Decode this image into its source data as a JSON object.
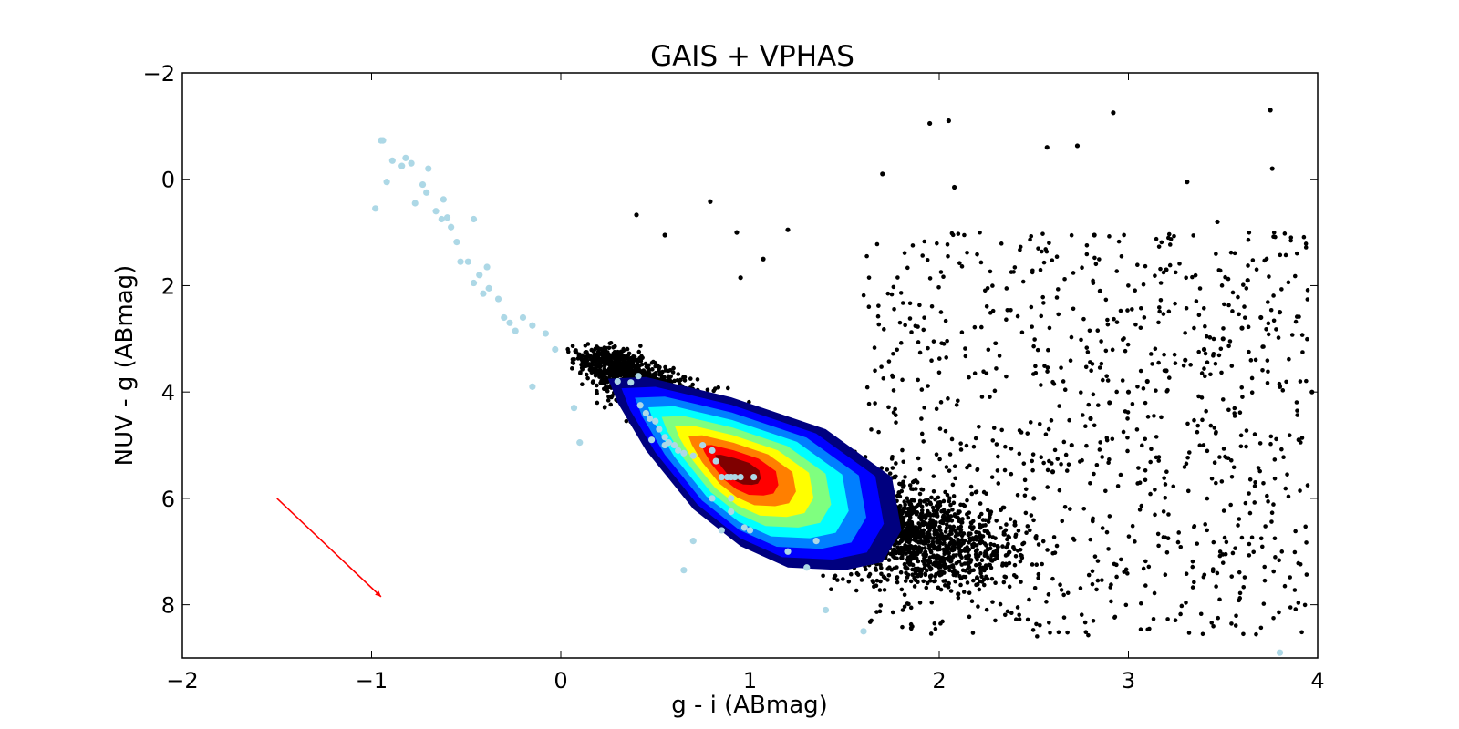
{
  "chart_data": {
    "type": "scatter",
    "title": "GAIS + VPHAS",
    "xlabel": "g - i (ABmag)",
    "ylabel": "NUV - g (ABmag)",
    "xlim": [
      -2,
      4
    ],
    "ylim": [
      9,
      -2
    ],
    "y_inverted": true,
    "grid": false,
    "xticks": [
      "−2",
      "−1",
      "0",
      "1",
      "2",
      "3",
      "4"
    ],
    "yticks": [
      "−2",
      "0",
      "2",
      "4",
      "6",
      "8"
    ],
    "xtick_values": [
      -2,
      -1,
      0,
      1,
      2,
      3,
      4
    ],
    "ytick_values": [
      -2,
      0,
      2,
      4,
      6,
      8
    ],
    "colors": {
      "field_points": "#000000",
      "reference_points": "#add8e6",
      "reddening_vector": "#ff0000",
      "density_levels": [
        "#00007f",
        "#0000ff",
        "#007fff",
        "#00ffff",
        "#7fff7f",
        "#ffff00",
        "#ff7f00",
        "#ff0000",
        "#7f0000"
      ]
    },
    "reddening_vector": {
      "start": [
        -1.5,
        6.0
      ],
      "end": [
        -0.95,
        7.85
      ]
    },
    "density_contour": {
      "description_levels": 9,
      "outer_ridge": [
        [
          0.25,
          3.75
        ],
        [
          0.45,
          3.72
        ],
        [
          0.9,
          4.1
        ],
        [
          1.4,
          4.7
        ],
        [
          1.75,
          5.6
        ],
        [
          1.8,
          6.6
        ],
        [
          1.7,
          7.2
        ],
        [
          1.5,
          7.35
        ],
        [
          1.2,
          7.3
        ],
        [
          0.95,
          6.9
        ],
        [
          0.7,
          6.2
        ],
        [
          0.45,
          5.1
        ],
        [
          0.3,
          4.2
        ]
      ],
      "peak": [
        0.92,
        5.45
      ]
    },
    "series": [
      {
        "name": "",
        "role": "field stars (black)",
        "x": [
          0.2,
          0.25,
          0.3,
          0.35,
          0.4,
          0.45,
          0.5,
          0.55,
          0.6,
          0.65,
          0.7,
          0.75,
          0.8,
          0.85,
          0.9,
          0.95,
          1.0,
          1.05,
          1.1,
          1.15,
          1.2,
          1.25,
          1.3,
          1.35,
          1.4,
          1.45,
          1.5,
          1.55,
          1.6,
          1.65,
          1.7,
          1.75,
          1.8,
          1.85,
          1.9,
          1.95,
          2.0,
          2.05,
          2.1,
          2.2,
          2.3,
          2.4,
          2.5,
          2.6,
          2.7,
          2.8,
          2.9,
          3.0,
          3.1,
          3.2,
          3.3,
          3.4,
          3.5,
          3.6,
          3.7,
          3.8,
          3.9,
          0.4,
          0.55,
          0.79,
          0.93,
          0.95,
          1.07,
          1.2,
          1.7,
          1.95,
          2.05,
          2.08,
          2.57,
          2.73,
          2.92,
          3.75,
          3.76,
          3.31,
          3.47,
          3.2,
          2.82,
          2.85,
          3.63,
          3.8,
          3.97
        ],
        "y": [
          3.3,
          3.4,
          3.5,
          3.5,
          3.6,
          3.7,
          3.8,
          3.9,
          4.0,
          4.1,
          4.2,
          4.3,
          4.4,
          4.5,
          4.6,
          4.7,
          4.8,
          4.9,
          5.0,
          5.1,
          5.2,
          5.3,
          5.4,
          5.5,
          5.6,
          5.7,
          5.8,
          5.9,
          6.0,
          6.2,
          6.4,
          6.6,
          6.8,
          6.9,
          7.0,
          7.2,
          7.4,
          7.6,
          7.8,
          7.5,
          7.0,
          6.5,
          6.0,
          5.5,
          5.0,
          4.5,
          4.2,
          4.0,
          3.8,
          3.6,
          3.4,
          3.2,
          3.0,
          2.8,
          2.6,
          3.9,
          4.9,
          0.67,
          1.05,
          0.42,
          1.0,
          1.85,
          1.5,
          0.95,
          -0.1,
          -1.05,
          -1.1,
          0.15,
          -0.6,
          -0.63,
          -1.25,
          -1.3,
          -0.2,
          0.05,
          0.8,
          1.7,
          1.05,
          2.1,
          1.9,
          2.5,
          4.0
        ]
      },
      {
        "name": "",
        "role": "reference sequence (light blue)",
        "x": [
          -0.98,
          -0.95,
          -0.92,
          -0.94,
          -0.89,
          -0.84,
          -0.82,
          -0.79,
          -0.77,
          -0.73,
          -0.71,
          -0.7,
          -0.66,
          -0.63,
          -0.62,
          -0.6,
          -0.58,
          -0.55,
          -0.53,
          -0.49,
          -0.46,
          -0.46,
          -0.43,
          -0.41,
          -0.39,
          -0.38,
          -0.33,
          -0.3,
          -0.27,
          -0.24,
          -0.2,
          -0.15,
          -0.15,
          -0.08,
          -0.03,
          0.07,
          0.1,
          0.3,
          0.37,
          0.41,
          0.42,
          0.45,
          0.47,
          0.5,
          0.52,
          0.55,
          0.57,
          0.6,
          0.62,
          0.65,
          0.7,
          0.75,
          0.8,
          0.82,
          0.85,
          0.88,
          0.9,
          0.92,
          0.95,
          1.02,
          0.8,
          0.9,
          0.97,
          1.35,
          1.3,
          0.65,
          0.7,
          0.48,
          0.55,
          0.85,
          0.9,
          1.0,
          1.2,
          1.4,
          1.6,
          3.8
        ],
        "y": [
          0.55,
          -0.73,
          0.05,
          -0.73,
          -0.35,
          -0.25,
          -0.4,
          -0.3,
          0.45,
          0.1,
          0.25,
          -0.2,
          0.6,
          0.75,
          0.38,
          0.72,
          0.9,
          1.18,
          1.55,
          1.55,
          1.95,
          0.75,
          1.8,
          2.15,
          1.65,
          2.05,
          2.25,
          2.6,
          2.7,
          2.85,
          2.6,
          2.75,
          3.9,
          2.9,
          3.2,
          4.3,
          4.95,
          3.8,
          3.82,
          3.7,
          4.25,
          4.4,
          4.5,
          4.55,
          4.7,
          4.85,
          4.95,
          5.0,
          5.1,
          5.15,
          5.2,
          5.0,
          5.1,
          5.3,
          5.6,
          5.6,
          5.6,
          5.6,
          5.6,
          5.6,
          6.0,
          6.25,
          6.55,
          6.8,
          7.3,
          7.35,
          6.8,
          4.9,
          5.0,
          6.6,
          6.0,
          6.6,
          7.0,
          8.1,
          8.5,
          8.9
        ]
      }
    ]
  }
}
